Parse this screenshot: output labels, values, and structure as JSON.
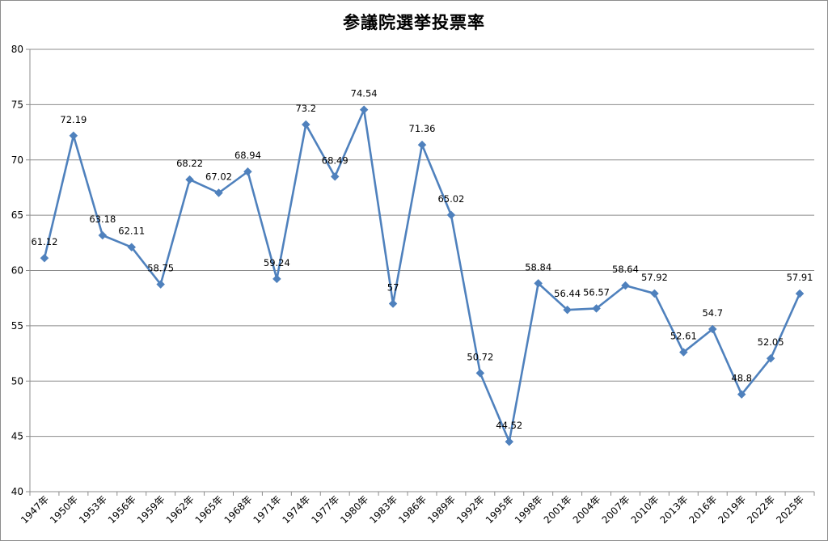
{
  "chart_data": {
    "type": "line",
    "title": "参議院選挙投票率",
    "xlabel": "",
    "ylabel": "",
    "ylim": [
      40,
      80
    ],
    "yticks": [
      40,
      45,
      50,
      55,
      60,
      65,
      70,
      75,
      80
    ],
    "grid": true,
    "legend": "none",
    "categories": [
      "1947年",
      "1950年",
      "1953年",
      "1956年",
      "1959年",
      "1962年",
      "1965年",
      "1968年",
      "1971年",
      "1974年",
      "1977年",
      "1980年",
      "1983年",
      "1986年",
      "1989年",
      "1992年",
      "1995年",
      "1998年",
      "2001年",
      "2004年",
      "2007年",
      "2010年",
      "2013年",
      "2016年",
      "2019年",
      "2022年",
      "2025年"
    ],
    "series": [
      {
        "color": "#4f81bd",
        "marker": "diamond",
        "values": [
          61.12,
          72.19,
          63.18,
          62.11,
          58.75,
          68.22,
          67.02,
          68.94,
          59.24,
          73.2,
          68.49,
          74.54,
          57,
          71.36,
          65.02,
          50.72,
          44.52,
          58.84,
          56.44,
          56.57,
          58.64,
          57.92,
          52.61,
          54.7,
          48.8,
          52.05,
          57.91
        ],
        "labels": [
          "61.12",
          "72.19",
          "63.18",
          "62.11",
          "58.75",
          "68.22",
          "67.02",
          "68.94",
          "59.24",
          "73.2",
          "68.49",
          "74.54",
          "57",
          "71.36",
          "65.02",
          "50.72",
          "44.52",
          "58.84",
          "56.44",
          "56.57",
          "58.64",
          "57.92",
          "52.61",
          "54.7",
          "48.8",
          "52.05",
          "57.91"
        ]
      }
    ]
  }
}
